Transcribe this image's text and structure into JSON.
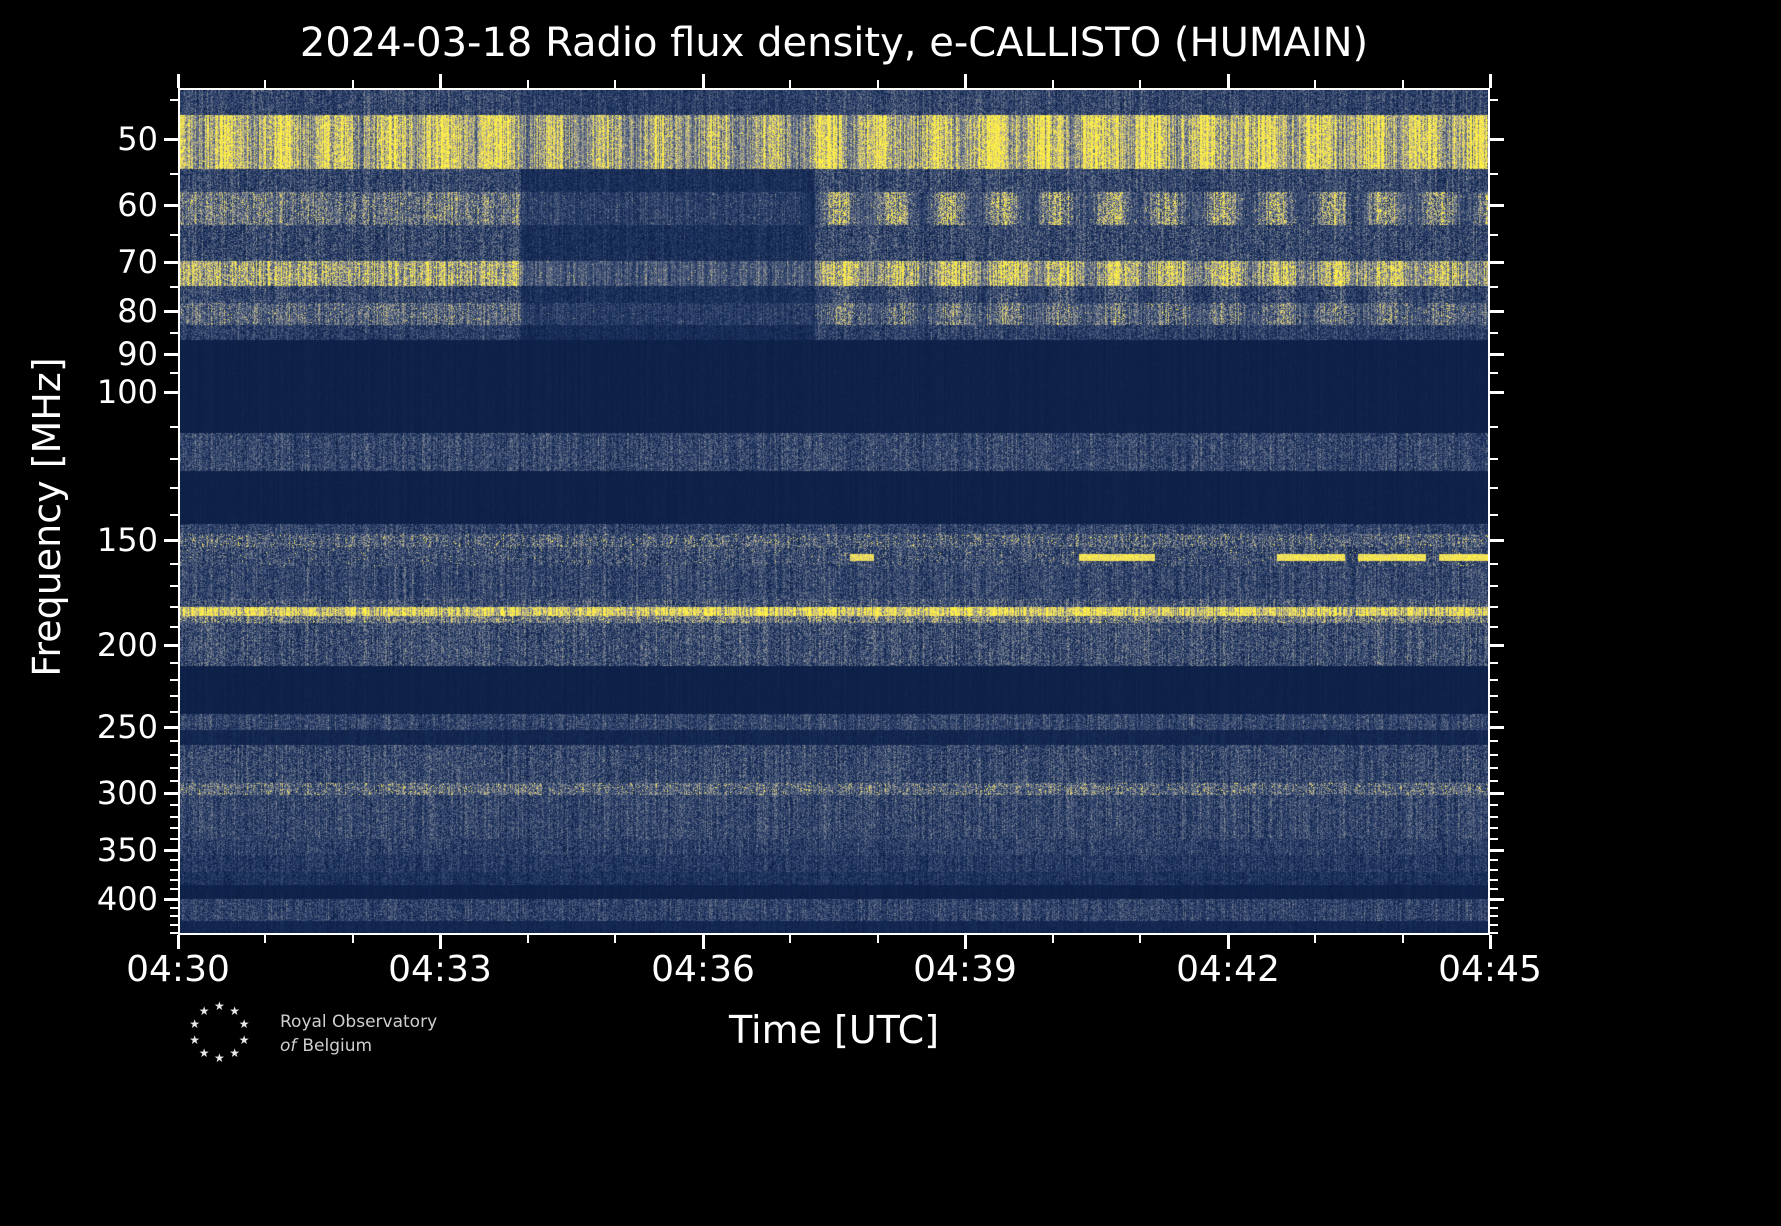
{
  "title": "2024-03-18 Radio flux density, e-CALLISTO (HUMAIN)",
  "logo": {
    "line1": "Royal Observatory",
    "line2_prefix": "of",
    "line2": "Belgium"
  },
  "chart_data": {
    "type": "heatmap",
    "title": "2024-03-18 Radio flux density, e-CALLISTO (HUMAIN)",
    "xlabel": "Time [UTC]",
    "ylabel": "Frequency [MHz]",
    "x_ticks": [
      "04:30",
      "04:33",
      "04:36",
      "04:39",
      "04:42",
      "04:45"
    ],
    "time_span_minutes": 15,
    "x_minor_step_minutes": 1,
    "y_scale": "log",
    "y_range_mhz": [
      43.5,
      442
    ],
    "y_ticks": [
      50,
      60,
      70,
      80,
      90,
      100,
      150,
      200,
      250,
      300,
      350,
      400
    ],
    "y_minor_ticks": [
      45,
      55,
      65,
      75,
      85,
      95,
      110,
      120,
      130,
      140,
      160,
      170,
      180,
      190,
      210,
      220,
      230,
      240,
      260,
      270,
      280,
      290,
      310,
      320,
      330,
      340,
      360,
      370,
      380,
      390,
      410,
      420,
      430,
      440
    ],
    "colormap_stops": [
      [
        0.0,
        10,
        28,
        66
      ],
      [
        0.22,
        30,
        52,
        96
      ],
      [
        0.45,
        84,
        98,
        128
      ],
      [
        0.65,
        150,
        152,
        150
      ],
      [
        0.82,
        216,
        200,
        120
      ],
      [
        1.0,
        255,
        240,
        70
      ]
    ],
    "bands": [
      {
        "f0": 43.5,
        "f1": 46.5,
        "base": 0.3,
        "noise": 0.22,
        "spike": 0
      },
      {
        "f0": 46.5,
        "f1": 54.0,
        "base": 0.78,
        "noise": 0.26,
        "spike": 0.04
      },
      {
        "f0": 54.0,
        "f1": 57.5,
        "base": 0.3,
        "noise": 0.24,
        "spike": 0
      },
      {
        "f0": 57.5,
        "f1": 63.0,
        "base": 0.48,
        "noise": 0.28,
        "spike": 0.03
      },
      {
        "f0": 63.0,
        "f1": 69.5,
        "base": 0.3,
        "noise": 0.26,
        "spike": 0
      },
      {
        "f0": 69.5,
        "f1": 74.5,
        "base": 0.68,
        "noise": 0.28,
        "spike": 0.05
      },
      {
        "f0": 74.5,
        "f1": 78.0,
        "base": 0.3,
        "noise": 0.24,
        "spike": 0
      },
      {
        "f0": 78.0,
        "f1": 83.0,
        "base": 0.44,
        "noise": 0.26,
        "spike": 0.02
      },
      {
        "f0": 83.0,
        "f1": 86.5,
        "base": 0.26,
        "noise": 0.2,
        "spike": 0
      },
      {
        "f0": 86.5,
        "f1": 111.5,
        "base": 0.05,
        "noise": 0.025,
        "spike": 0
      },
      {
        "f0": 111.5,
        "f1": 124.0,
        "base": 0.3,
        "noise": 0.22,
        "spike": 0
      },
      {
        "f0": 124.0,
        "f1": 143.5,
        "base": 0.05,
        "noise": 0.025,
        "spike": 0
      },
      {
        "f0": 143.5,
        "f1": 147.5,
        "base": 0.28,
        "noise": 0.22,
        "spike": 0
      },
      {
        "f0": 147.5,
        "f1": 152.5,
        "base": 0.38,
        "noise": 0.28,
        "spike": 0.06
      },
      {
        "f0": 152.5,
        "f1": 161.0,
        "base": 0.32,
        "noise": 0.26,
        "spike": 0.02
      },
      {
        "f0": 161.0,
        "f1": 176.0,
        "base": 0.3,
        "noise": 0.22,
        "spike": 0
      },
      {
        "f0": 176.0,
        "f1": 180.0,
        "base": 0.36,
        "noise": 0.26,
        "spike": 0
      },
      {
        "f0": 180.0,
        "f1": 184.5,
        "base": 0.85,
        "noise": 0.22,
        "spike": 0.08
      },
      {
        "f0": 184.5,
        "f1": 188.0,
        "base": 0.5,
        "noise": 0.3,
        "spike": 0.04
      },
      {
        "f0": 188.0,
        "f1": 212.0,
        "base": 0.33,
        "noise": 0.26,
        "spike": 0
      },
      {
        "f0": 212.0,
        "f1": 242.0,
        "base": 0.05,
        "noise": 0.025,
        "spike": 0
      },
      {
        "f0": 242.0,
        "f1": 252.5,
        "base": 0.3,
        "noise": 0.2,
        "spike": 0
      },
      {
        "f0": 252.5,
        "f1": 263.0,
        "base": 0.1,
        "noise": 0.06,
        "spike": 0
      },
      {
        "f0": 263.0,
        "f1": 292.0,
        "base": 0.3,
        "noise": 0.24,
        "spike": 0
      },
      {
        "f0": 292.0,
        "f1": 302.0,
        "base": 0.42,
        "noise": 0.28,
        "spike": 0.05
      },
      {
        "f0": 302.0,
        "f1": 341.0,
        "base": 0.3,
        "noise": 0.22,
        "spike": 0
      },
      {
        "f0": 341.0,
        "f1": 356.0,
        "base": 0.26,
        "noise": 0.2,
        "spike": 0
      },
      {
        "f0": 356.0,
        "f1": 373.0,
        "base": 0.22,
        "noise": 0.18,
        "spike": 0
      },
      {
        "f0": 373.0,
        "f1": 387.0,
        "base": 0.18,
        "noise": 0.15,
        "spike": 0
      },
      {
        "f0": 387.0,
        "f1": 402.0,
        "base": 0.06,
        "noise": 0.03,
        "spike": 0
      },
      {
        "f0": 402.0,
        "f1": 427.0,
        "base": 0.28,
        "noise": 0.2,
        "spike": 0
      },
      {
        "f0": 427.0,
        "f1": 442.0,
        "base": 0.1,
        "noise": 0.06,
        "spike": 0
      }
    ],
    "features": [
      {
        "type": "dim",
        "f0": 54.0,
        "f1": 86.5,
        "t0": 0.26,
        "t1": 0.485,
        "factor": 0.55
      },
      {
        "type": "dim",
        "f0": 43.5,
        "f1": 54.0,
        "t0": 0.26,
        "t1": 0.485,
        "factor": 0.85
      },
      {
        "type": "mod",
        "f0": 46.5,
        "f1": 54.0,
        "t0": 0.0,
        "t1": 1.0,
        "cycles": 24,
        "depth": 0.18
      },
      {
        "type": "mod",
        "f0": 57.5,
        "f1": 63.0,
        "t0": 0.47,
        "t1": 1.0,
        "cycles": 24,
        "depth": 0.35
      },
      {
        "type": "mod",
        "f0": 69.5,
        "f1": 83.0,
        "t0": 0.47,
        "t1": 1.0,
        "cycles": 24,
        "depth": 0.2
      },
      {
        "type": "streak",
        "f0": 155.5,
        "f1": 158.5,
        "t0": 0.512,
        "t1": 0.53,
        "level": 0.9
      },
      {
        "type": "streak",
        "f0": 155.5,
        "f1": 158.5,
        "t0": 0.687,
        "t1": 0.745,
        "level": 0.95
      },
      {
        "type": "streak",
        "f0": 155.5,
        "f1": 158.5,
        "t0": 0.838,
        "t1": 0.89,
        "level": 0.95
      },
      {
        "type": "streak",
        "f0": 155.5,
        "f1": 158.5,
        "t0": 0.9,
        "t1": 0.952,
        "level": 0.95
      },
      {
        "type": "streak",
        "f0": 155.5,
        "f1": 158.5,
        "t0": 0.962,
        "t1": 1.0,
        "level": 0.95
      }
    ]
  }
}
